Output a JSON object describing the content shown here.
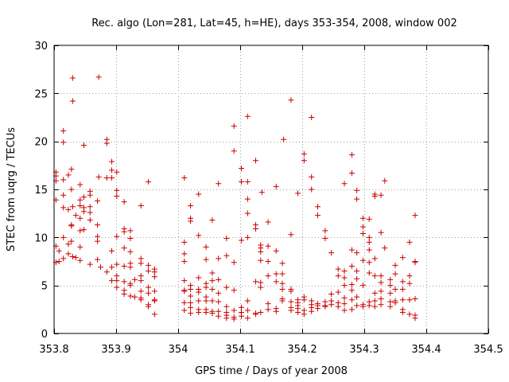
{
  "chart_data": {
    "type": "scatter",
    "title": "Rec. algo (Lon=281, Lat=45, h=HE), days 353-354, 2008, window 002",
    "xlabel": "GPS time / Days of year 2008",
    "ylabel": "STEC from uqrg / TECUs",
    "xlim": [
      353.8,
      354.5
    ],
    "ylim": [
      0,
      30
    ],
    "xticks": [
      353.8,
      353.9,
      354,
      354.1,
      354.2,
      354.3,
      354.4,
      354.5
    ],
    "xtick_labels": [
      "353.8",
      "353.9",
      "354",
      "354.1",
      "354.2",
      "354.3",
      "354.4",
      "354.5"
    ],
    "yticks": [
      0,
      5,
      10,
      15,
      20,
      25,
      30
    ],
    "ytick_labels": [
      "0",
      "5",
      "10",
      "15",
      "20",
      "25",
      "30"
    ],
    "grid": true,
    "marker": "plus",
    "color": "#cc0000",
    "points": [
      [
        353.803,
        16.8
      ],
      [
        353.803,
        16.4
      ],
      [
        353.803,
        15.9
      ],
      [
        353.803,
        13.9
      ],
      [
        353.803,
        9.1
      ],
      [
        353.803,
        7.4
      ],
      [
        353.808,
        8.6
      ],
      [
        353.808,
        7.5
      ],
      [
        353.815,
        21.1
      ],
      [
        353.815,
        19.9
      ],
      [
        353.815,
        16.0
      ],
      [
        353.815,
        14.4
      ],
      [
        353.815,
        13.1
      ],
      [
        353.815,
        10.0
      ],
      [
        353.815,
        7.8
      ],
      [
        353.823,
        16.5
      ],
      [
        353.823,
        12.9
      ],
      [
        353.823,
        9.3
      ],
      [
        353.823,
        8.3
      ],
      [
        353.828,
        17.1
      ],
      [
        353.828,
        15.0
      ],
      [
        353.828,
        11.3
      ],
      [
        353.828,
        11.2
      ],
      [
        353.828,
        9.6
      ],
      [
        353.83,
        26.6
      ],
      [
        353.83,
        24.2
      ],
      [
        353.83,
        13.2
      ],
      [
        353.83,
        8.0
      ],
      [
        353.835,
        12.3
      ],
      [
        353.835,
        7.9
      ],
      [
        353.842,
        15.5
      ],
      [
        353.842,
        13.9
      ],
      [
        353.842,
        13.3
      ],
      [
        353.842,
        12.0
      ],
      [
        353.842,
        10.7
      ],
      [
        353.842,
        9.0
      ],
      [
        353.842,
        7.6
      ],
      [
        353.848,
        19.6
      ],
      [
        353.848,
        14.2
      ],
      [
        353.848,
        13.1
      ],
      [
        353.848,
        12.7
      ],
      [
        353.848,
        10.8
      ],
      [
        353.858,
        14.8
      ],
      [
        353.858,
        14.4
      ],
      [
        353.858,
        13.2
      ],
      [
        353.858,
        12.6
      ],
      [
        353.858,
        11.8
      ],
      [
        353.858,
        7.2
      ],
      [
        353.87,
        13.8
      ],
      [
        353.87,
        11.3
      ],
      [
        353.87,
        10.1
      ],
      [
        353.87,
        9.6
      ],
      [
        353.87,
        7.7
      ],
      [
        353.872,
        26.7
      ],
      [
        353.872,
        16.3
      ],
      [
        353.875,
        6.9
      ],
      [
        353.885,
        20.2
      ],
      [
        353.885,
        19.8
      ],
      [
        353.885,
        16.2
      ],
      [
        353.885,
        6.4
      ],
      [
        353.893,
        17.9
      ],
      [
        353.893,
        17.0
      ],
      [
        353.893,
        16.2
      ],
      [
        353.893,
        8.6
      ],
      [
        353.893,
        6.9
      ],
      [
        353.893,
        5.5
      ],
      [
        353.901,
        16.8
      ],
      [
        353.901,
        14.9
      ],
      [
        353.901,
        14.3
      ],
      [
        353.901,
        10.1
      ],
      [
        353.901,
        7.2
      ],
      [
        353.901,
        6.0
      ],
      [
        353.901,
        5.5
      ],
      [
        353.901,
        4.8
      ],
      [
        353.913,
        13.7
      ],
      [
        353.913,
        10.9
      ],
      [
        353.913,
        10.6
      ],
      [
        353.913,
        8.9
      ],
      [
        353.913,
        7.0
      ],
      [
        353.913,
        5.4
      ],
      [
        353.913,
        4.5
      ],
      [
        353.913,
        4.1
      ],
      [
        353.923,
        10.7
      ],
      [
        353.923,
        9.9
      ],
      [
        353.923,
        8.5
      ],
      [
        353.923,
        7.3
      ],
      [
        353.923,
        6.9
      ],
      [
        353.923,
        5.2
      ],
      [
        353.923,
        5.0
      ],
      [
        353.923,
        3.9
      ],
      [
        353.93,
        5.6
      ],
      [
        353.93,
        3.8
      ],
      [
        353.94,
        13.3
      ],
      [
        353.94,
        7.8
      ],
      [
        353.94,
        7.3
      ],
      [
        353.94,
        6.0
      ],
      [
        353.94,
        5.5
      ],
      [
        353.94,
        4.4
      ],
      [
        353.94,
        3.7
      ],
      [
        353.94,
        3.5
      ],
      [
        353.952,
        15.8
      ],
      [
        353.952,
        7.1
      ],
      [
        353.952,
        6.5
      ],
      [
        353.952,
        4.8
      ],
      [
        353.952,
        4.2
      ],
      [
        353.952,
        3.0
      ],
      [
        353.952,
        2.8
      ],
      [
        353.962,
        6.7
      ],
      [
        353.962,
        6.4
      ],
      [
        353.962,
        5.9
      ],
      [
        353.962,
        4.4
      ],
      [
        353.962,
        3.5
      ],
      [
        353.962,
        3.4
      ],
      [
        353.962,
        2.0
      ],
      [
        354.01,
        16.2
      ],
      [
        354.01,
        9.5
      ],
      [
        354.01,
        8.3
      ],
      [
        354.01,
        7.5
      ],
      [
        354.01,
        5.5
      ],
      [
        354.01,
        4.5
      ],
      [
        354.01,
        4.4
      ],
      [
        354.01,
        3.2
      ],
      [
        354.01,
        2.4
      ],
      [
        354.02,
        13.3
      ],
      [
        354.02,
        12.0
      ],
      [
        354.02,
        11.7
      ],
      [
        354.02,
        5.0
      ],
      [
        354.02,
        4.6
      ],
      [
        354.02,
        3.9
      ],
      [
        354.02,
        3.2
      ],
      [
        354.02,
        2.7
      ],
      [
        354.02,
        2.1
      ],
      [
        354.033,
        14.5
      ],
      [
        354.033,
        10.2
      ],
      [
        354.033,
        5.8
      ],
      [
        354.033,
        4.6
      ],
      [
        354.033,
        4.3
      ],
      [
        354.033,
        3.4
      ],
      [
        354.033,
        2.5
      ],
      [
        354.033,
        2.2
      ],
      [
        354.045,
        9.0
      ],
      [
        354.045,
        7.7
      ],
      [
        354.045,
        5.2
      ],
      [
        354.045,
        4.8
      ],
      [
        354.045,
        3.8
      ],
      [
        354.045,
        3.4
      ],
      [
        354.045,
        2.5
      ],
      [
        354.045,
        2.2
      ],
      [
        354.055,
        11.8
      ],
      [
        354.055,
        6.3
      ],
      [
        354.055,
        5.5
      ],
      [
        354.055,
        4.6
      ],
      [
        354.055,
        3.4
      ],
      [
        354.055,
        2.3
      ],
      [
        354.055,
        2.1
      ],
      [
        354.065,
        15.6
      ],
      [
        354.065,
        7.8
      ],
      [
        354.065,
        5.6
      ],
      [
        354.065,
        4.2
      ],
      [
        354.065,
        3.3
      ],
      [
        354.065,
        2.3
      ],
      [
        354.065,
        1.8
      ],
      [
        354.078,
        9.9
      ],
      [
        354.078,
        8.1
      ],
      [
        354.078,
        4.8
      ],
      [
        354.078,
        2.8
      ],
      [
        354.078,
        2.2
      ],
      [
        354.078,
        1.9
      ],
      [
        354.078,
        1.6
      ],
      [
        354.09,
        21.6
      ],
      [
        354.09,
        19.0
      ],
      [
        354.09,
        7.4
      ],
      [
        354.09,
        4.5
      ],
      [
        354.09,
        2.4
      ],
      [
        354.09,
        1.7
      ],
      [
        354.09,
        1.5
      ],
      [
        354.102,
        17.2
      ],
      [
        354.102,
        15.8
      ],
      [
        354.102,
        9.7
      ],
      [
        354.102,
        2.7
      ],
      [
        354.102,
        2.2
      ],
      [
        354.102,
        1.8
      ],
      [
        354.112,
        22.6
      ],
      [
        354.112,
        15.8
      ],
      [
        354.112,
        14.0
      ],
      [
        354.112,
        12.5
      ],
      [
        354.112,
        10.0
      ],
      [
        354.112,
        3.4
      ],
      [
        354.112,
        2.4
      ],
      [
        354.112,
        1.6
      ],
      [
        354.125,
        18.0
      ],
      [
        354.125,
        11.3
      ],
      [
        354.125,
        10.9
      ],
      [
        354.125,
        5.4
      ],
      [
        354.125,
        2.1
      ],
      [
        354.125,
        2.0
      ],
      [
        354.133,
        9.2
      ],
      [
        354.133,
        8.9
      ],
      [
        354.133,
        8.5
      ],
      [
        354.133,
        7.6
      ],
      [
        354.133,
        5.3
      ],
      [
        354.133,
        4.8
      ],
      [
        354.133,
        2.2
      ],
      [
        354.135,
        14.7
      ],
      [
        354.145,
        11.6
      ],
      [
        354.145,
        9.1
      ],
      [
        354.145,
        7.5
      ],
      [
        354.145,
        6.0
      ],
      [
        354.145,
        3.1
      ],
      [
        354.145,
        2.5
      ],
      [
        354.158,
        15.3
      ],
      [
        354.158,
        8.6
      ],
      [
        354.158,
        6.2
      ],
      [
        354.158,
        5.4
      ],
      [
        354.158,
        2.6
      ],
      [
        354.158,
        2.3
      ],
      [
        354.168,
        7.3
      ],
      [
        354.168,
        6.2
      ],
      [
        354.168,
        5.2
      ],
      [
        354.168,
        4.6
      ],
      [
        354.168,
        3.6
      ],
      [
        354.168,
        3.4
      ],
      [
        354.17,
        20.2
      ],
      [
        354.182,
        24.3
      ],
      [
        354.182,
        10.3
      ],
      [
        354.182,
        4.6
      ],
      [
        354.182,
        4.4
      ],
      [
        354.182,
        3.3
      ],
      [
        354.182,
        2.7
      ],
      [
        354.182,
        2.4
      ],
      [
        354.193,
        14.6
      ],
      [
        354.193,
        3.5
      ],
      [
        354.193,
        3.2
      ],
      [
        354.193,
        2.9
      ],
      [
        354.193,
        2.6
      ],
      [
        354.193,
        2.2
      ],
      [
        354.203,
        18.7
      ],
      [
        354.203,
        18.0
      ],
      [
        354.203,
        3.8
      ],
      [
        354.203,
        3.5
      ],
      [
        354.203,
        2.4
      ],
      [
        354.203,
        2.0
      ],
      [
        354.215,
        22.5
      ],
      [
        354.215,
        16.3
      ],
      [
        354.215,
        15.0
      ],
      [
        354.215,
        3.4
      ],
      [
        354.215,
        3.0
      ],
      [
        354.215,
        2.7
      ],
      [
        354.215,
        2.3
      ],
      [
        354.225,
        13.2
      ],
      [
        354.225,
        12.3
      ],
      [
        354.225,
        3.1
      ],
      [
        354.225,
        2.9
      ],
      [
        354.225,
        2.6
      ],
      [
        354.237,
        10.7
      ],
      [
        354.237,
        9.9
      ],
      [
        354.237,
        3.3
      ],
      [
        354.237,
        2.9
      ],
      [
        354.237,
        2.8
      ],
      [
        354.247,
        8.4
      ],
      [
        354.247,
        4.1
      ],
      [
        354.247,
        3.4
      ],
      [
        354.247,
        3.0
      ],
      [
        354.258,
        6.7
      ],
      [
        354.258,
        6.0
      ],
      [
        354.258,
        4.3
      ],
      [
        354.258,
        3.2
      ],
      [
        354.258,
        2.8
      ],
      [
        354.268,
        15.6
      ],
      [
        354.268,
        6.5
      ],
      [
        354.268,
        5.8
      ],
      [
        354.268,
        5.0
      ],
      [
        354.268,
        3.7
      ],
      [
        354.268,
        3.1
      ],
      [
        354.268,
        2.4
      ],
      [
        354.28,
        18.6
      ],
      [
        354.28,
        16.7
      ],
      [
        354.28,
        8.7
      ],
      [
        354.28,
        7.0
      ],
      [
        354.28,
        5.1
      ],
      [
        354.28,
        4.5
      ],
      [
        354.28,
        3.5
      ],
      [
        354.28,
        2.5
      ],
      [
        354.288,
        14.9
      ],
      [
        354.288,
        14.0
      ],
      [
        354.288,
        8.4
      ],
      [
        354.288,
        6.5
      ],
      [
        354.288,
        5.7
      ],
      [
        354.288,
        3.8
      ],
      [
        354.288,
        2.9
      ],
      [
        354.298,
        12.0
      ],
      [
        354.298,
        11.1
      ],
      [
        354.298,
        10.4
      ],
      [
        354.298,
        7.6
      ],
      [
        354.298,
        5.0
      ],
      [
        354.298,
        3.0
      ],
      [
        354.298,
        2.8
      ],
      [
        354.308,
        11.9
      ],
      [
        354.308,
        10.0
      ],
      [
        354.308,
        9.5
      ],
      [
        354.308,
        8.7
      ],
      [
        354.308,
        7.4
      ],
      [
        354.308,
        6.3
      ],
      [
        354.308,
        3.3
      ],
      [
        354.308,
        2.9
      ],
      [
        354.317,
        14.5
      ],
      [
        354.317,
        14.3
      ],
      [
        354.317,
        7.8
      ],
      [
        354.317,
        6.0
      ],
      [
        354.317,
        4.2
      ],
      [
        354.317,
        3.4
      ],
      [
        354.317,
        2.8
      ],
      [
        354.327,
        14.4
      ],
      [
        354.327,
        10.5
      ],
      [
        354.327,
        6.0
      ],
      [
        354.327,
        5.3
      ],
      [
        354.327,
        4.4
      ],
      [
        354.327,
        3.6
      ],
      [
        354.327,
        3.0
      ],
      [
        354.333,
        15.9
      ],
      [
        354.333,
        8.9
      ],
      [
        354.342,
        5.6
      ],
      [
        354.342,
        5.0
      ],
      [
        354.342,
        4.2
      ],
      [
        354.342,
        3.3
      ],
      [
        354.342,
        2.8
      ],
      [
        354.35,
        7.1
      ],
      [
        354.35,
        6.2
      ],
      [
        354.35,
        4.6
      ],
      [
        354.35,
        3.4
      ],
      [
        354.35,
        3.2
      ],
      [
        354.362,
        7.9
      ],
      [
        354.362,
        5.4
      ],
      [
        354.362,
        4.6
      ],
      [
        354.362,
        3.5
      ],
      [
        354.362,
        2.5
      ],
      [
        354.362,
        2.2
      ],
      [
        354.373,
        9.5
      ],
      [
        354.373,
        6.0
      ],
      [
        354.373,
        5.2
      ],
      [
        354.373,
        3.5
      ],
      [
        354.373,
        2.0
      ],
      [
        354.382,
        12.3
      ],
      [
        354.382,
        7.5
      ],
      [
        354.382,
        7.4
      ],
      [
        354.382,
        3.6
      ],
      [
        354.382,
        1.9
      ],
      [
        354.382,
        1.6
      ]
    ]
  }
}
